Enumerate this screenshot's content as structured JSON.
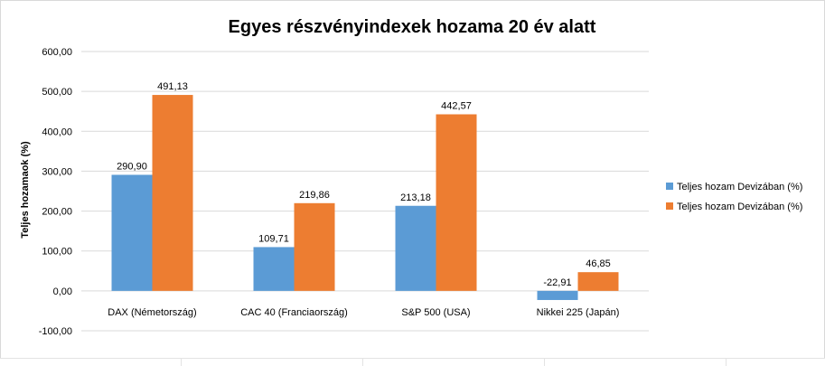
{
  "chart_data": {
    "type": "bar",
    "title": "Egyes részvényindexek hozama 20 év alatt",
    "xlabel": "",
    "ylabel": "Teljes hozamaok (%)",
    "categories": [
      "DAX (Németország)",
      "CAC 40 (Franciaország)",
      "S&P 500 (USA)",
      "Nikkei 225 (Japán)"
    ],
    "series": [
      {
        "name": "Teljes hozam Devizában (%)",
        "color": "#5b9bd5",
        "values": [
          290.9,
          109.71,
          213.18,
          -22.91
        ],
        "labels": [
          "290,90",
          "109,71",
          "213,18",
          "-22,91"
        ]
      },
      {
        "name": "Teljes hozam Devizában (%)",
        "color": "#ed7d31",
        "values": [
          491.13,
          219.86,
          442.57,
          46.85
        ],
        "labels": [
          "491,13",
          "219,86",
          "442,57",
          "46,85"
        ]
      }
    ],
    "ylim": [
      -100,
      600
    ],
    "yticks": [
      -100,
      0,
      100,
      200,
      300,
      400,
      500,
      600
    ],
    "ytick_labels": [
      "-100,00",
      "0,00",
      "100,00",
      "200,00",
      "300,00",
      "400,00",
      "500,00",
      "600,00"
    ],
    "grid": true,
    "legend_position": "right"
  }
}
